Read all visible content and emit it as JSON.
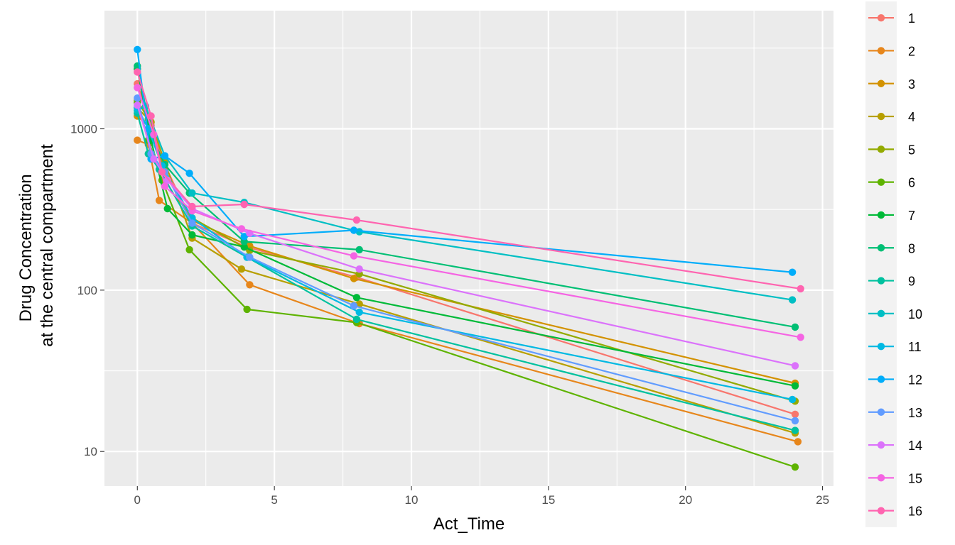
{
  "chart_data": {
    "type": "line",
    "xlabel": "Act_Time",
    "ylabel_lines": [
      "Drug Concentration",
      "at the central compartment"
    ],
    "x_ticks": [
      0,
      5,
      10,
      15,
      20,
      25
    ],
    "x_tick_labels": [
      "0",
      "5",
      "10",
      "15",
      "20",
      "25"
    ],
    "y_ticks": [
      10,
      100,
      1000
    ],
    "y_tick_labels": [
      "10",
      "100",
      "1000"
    ],
    "xlim": [
      -1.2,
      25.4
    ],
    "ylim": [
      6.1,
      5400
    ],
    "y_scale": "log",
    "grid": true,
    "legend_position": "right",
    "series": [
      {
        "name": "1",
        "color": "#F8766D",
        "points": [
          [
            0,
            1900
          ],
          [
            0.5,
            1050
          ],
          [
            1,
            600
          ],
          [
            2,
            260
          ],
          [
            4,
            185
          ],
          [
            8,
            120
          ],
          [
            24,
            17
          ]
        ]
      },
      {
        "name": "2",
        "color": "#E7861B",
        "points": [
          [
            0,
            850
          ],
          [
            0.4,
            800
          ],
          [
            0.8,
            360
          ],
          [
            2,
            260
          ],
          [
            4.1,
            108
          ],
          [
            8.1,
            62
          ],
          [
            24.1,
            11.5
          ]
        ]
      },
      {
        "name": "3",
        "color": "#D39200",
        "points": [
          [
            0,
            1200
          ],
          [
            0.5,
            1000
          ],
          [
            1,
            550
          ],
          [
            2,
            270
          ],
          [
            4.1,
            188
          ],
          [
            7.9,
            118
          ],
          [
            24,
            26.5
          ]
        ]
      },
      {
        "name": "4",
        "color": "#B79F00",
        "points": [
          [
            0,
            1350
          ],
          [
            0.5,
            1100
          ],
          [
            1,
            620
          ],
          [
            2,
            210
          ],
          [
            3.8,
            135
          ],
          [
            8.1,
            82
          ],
          [
            24,
            13
          ]
        ]
      },
      {
        "name": "5",
        "color": "#93AA00",
        "points": [
          [
            0,
            1500
          ],
          [
            0.4,
            1150
          ],
          [
            0.9,
            580
          ],
          [
            2,
            280
          ],
          [
            4.1,
            176
          ],
          [
            8.1,
            126
          ],
          [
            24,
            20.5
          ]
        ]
      },
      {
        "name": "6",
        "color": "#5EB300",
        "points": [
          [
            0,
            1450
          ],
          [
            0.4,
            850
          ],
          [
            0.9,
            480
          ],
          [
            1.9,
            178
          ],
          [
            4,
            76
          ],
          [
            8,
            63
          ],
          [
            24,
            8
          ]
        ]
      },
      {
        "name": "7",
        "color": "#00BA38",
        "points": [
          [
            0,
            2350
          ],
          [
            0.5,
            850
          ],
          [
            1.1,
            320
          ],
          [
            2,
            220
          ],
          [
            3.9,
            185
          ],
          [
            8,
            90
          ],
          [
            24,
            25.5
          ]
        ]
      },
      {
        "name": "8",
        "color": "#00BF74",
        "points": [
          [
            0,
            2450
          ],
          [
            0.5,
            920
          ],
          [
            1,
            600
          ],
          [
            1.9,
            400
          ],
          [
            3.9,
            200
          ],
          [
            8.1,
            178
          ],
          [
            24,
            59
          ]
        ]
      },
      {
        "name": "9",
        "color": "#00C19F",
        "points": [
          [
            0,
            1250
          ],
          [
            0.4,
            700
          ],
          [
            0.8,
            560
          ],
          [
            2,
            250
          ],
          [
            4,
            160
          ],
          [
            8,
            66
          ],
          [
            24,
            13.5
          ]
        ]
      },
      {
        "name": "10",
        "color": "#00BFC4",
        "points": [
          [
            0,
            1300
          ],
          [
            0.3,
            1380
          ],
          [
            1,
            680
          ],
          [
            2,
            400
          ],
          [
            3.9,
            350
          ],
          [
            8.1,
            230
          ],
          [
            23.9,
            87
          ]
        ]
      },
      {
        "name": "11",
        "color": "#00B9E3",
        "points": [
          [
            0,
            1350
          ],
          [
            0.4,
            1000
          ],
          [
            0.9,
            590
          ],
          [
            2,
            280
          ],
          [
            4,
            160
          ],
          [
            8.1,
            73
          ],
          [
            23.9,
            21
          ]
        ]
      },
      {
        "name": "12",
        "color": "#00ADFA",
        "points": [
          [
            0,
            3100
          ],
          [
            0.5,
            650
          ],
          [
            1,
            680
          ],
          [
            1.9,
            530
          ],
          [
            3.9,
            215
          ],
          [
            7.9,
            235
          ],
          [
            23.9,
            129
          ]
        ]
      },
      {
        "name": "13",
        "color": "#619CFF",
        "points": [
          [
            0,
            1550
          ],
          [
            0.5,
            700
          ],
          [
            1,
            540
          ],
          [
            2,
            260
          ],
          [
            4.1,
            160
          ],
          [
            7.9,
            80
          ],
          [
            24,
            15.5
          ]
        ]
      },
      {
        "name": "14",
        "color": "#DB72FB",
        "points": [
          [
            0,
            1400
          ],
          [
            0.6,
            650
          ],
          [
            1.1,
            480
          ],
          [
            2,
            320
          ],
          [
            4.1,
            225
          ],
          [
            8.1,
            135
          ],
          [
            24,
            34
          ]
        ]
      },
      {
        "name": "15",
        "color": "#F564E3",
        "points": [
          [
            0,
            1800
          ],
          [
            0.6,
            920
          ],
          [
            1,
            440
          ],
          [
            2,
            310
          ],
          [
            3.8,
            240
          ],
          [
            7.9,
            163
          ],
          [
            24.2,
            51
          ]
        ]
      },
      {
        "name": "16",
        "color": "#FF64B0",
        "points": [
          [
            0,
            2250
          ],
          [
            0.5,
            1200
          ],
          [
            0.9,
            540
          ],
          [
            2,
            330
          ],
          [
            3.9,
            340
          ],
          [
            8,
            272
          ],
          [
            24.2,
            102
          ]
        ]
      }
    ]
  }
}
